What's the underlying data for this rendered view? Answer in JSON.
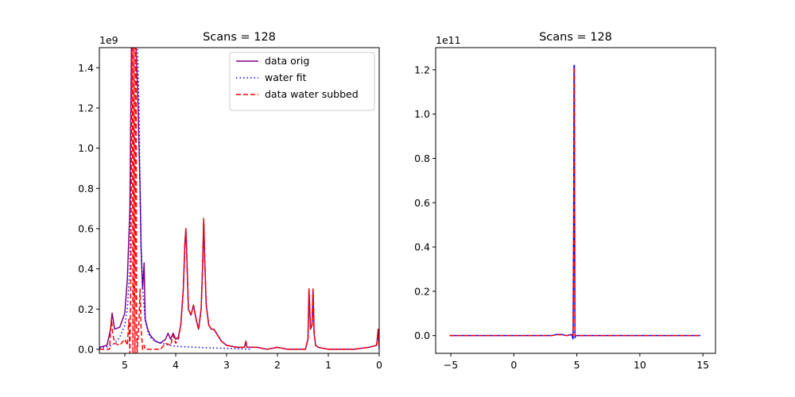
{
  "chart_data": [
    {
      "type": "line",
      "title": "Scans = 128",
      "xlabel": "",
      "ylabel": "",
      "y_offset_text": "1e9",
      "xlim": [
        5.5,
        0
      ],
      "ylim": [
        -0.02,
        1.5
      ],
      "x_ticks": [
        5,
        4,
        3,
        2,
        1,
        0
      ],
      "x_tick_labels": [
        "5",
        "4",
        "3",
        "2",
        "1",
        "0"
      ],
      "y_ticks": [
        0.0,
        0.2,
        0.4,
        0.6,
        0.8,
        1.0,
        1.2,
        1.4
      ],
      "y_tick_labels": [
        "0.0",
        "0.2",
        "0.4",
        "0.6",
        "0.8",
        "1.0",
        "1.2",
        "1.4"
      ],
      "grid": false,
      "legend": "upper right",
      "series": [
        {
          "name": "data orig",
          "color": "#800080",
          "style": "solid",
          "x": [
            5.5,
            5.35,
            5.28,
            5.25,
            5.2,
            5.1,
            5.0,
            4.95,
            4.9,
            4.87,
            4.85,
            4.83,
            4.8,
            4.78,
            4.75,
            4.72,
            4.7,
            4.68,
            4.65,
            4.62,
            4.6,
            4.55,
            4.5,
            4.4,
            4.3,
            4.2,
            4.15,
            4.1,
            4.05,
            4.0,
            3.95,
            3.9,
            3.85,
            3.82,
            3.8,
            3.78,
            3.75,
            3.7,
            3.65,
            3.6,
            3.55,
            3.5,
            3.47,
            3.45,
            3.43,
            3.4,
            3.35,
            3.3,
            3.25,
            3.2,
            3.1,
            3.0,
            2.8,
            2.65,
            2.62,
            2.6,
            2.4,
            2.2,
            2.0,
            1.8,
            1.6,
            1.45,
            1.4,
            1.38,
            1.35,
            1.32,
            1.3,
            1.28,
            1.25,
            1.2,
            1.0,
            0.8,
            0.5,
            0.2,
            0.05,
            0.02,
            0.0
          ],
          "y": [
            0.01,
            0.02,
            0.1,
            0.18,
            0.1,
            0.11,
            0.18,
            0.35,
            0.7,
            1.5,
            1.5,
            1.5,
            1.5,
            1.5,
            1.3,
            1.0,
            0.8,
            0.5,
            0.3,
            0.43,
            0.15,
            0.1,
            0.07,
            0.04,
            0.03,
            0.05,
            0.08,
            0.05,
            0.08,
            0.05,
            0.06,
            0.12,
            0.3,
            0.52,
            0.6,
            0.45,
            0.2,
            0.17,
            0.22,
            0.15,
            0.1,
            0.2,
            0.42,
            0.65,
            0.45,
            0.22,
            0.12,
            0.1,
            0.1,
            0.08,
            0.04,
            0.02,
            0.01,
            0.01,
            0.04,
            0.01,
            0.01,
            0.0,
            0.01,
            0.0,
            0.0,
            0.0,
            0.05,
            0.3,
            0.1,
            0.12,
            0.3,
            0.08,
            0.02,
            0.01,
            0.0,
            0.0,
            0.0,
            0.01,
            0.02,
            0.1,
            0.0
          ]
        },
        {
          "name": "water fit",
          "color": "#0000ff",
          "style": "dotted",
          "x": [
            5.5,
            5.3,
            5.2,
            5.1,
            5.0,
            4.95,
            4.9,
            4.87,
            4.85,
            4.8,
            4.75,
            4.72,
            4.7,
            4.68,
            4.65,
            4.6,
            4.55,
            4.5,
            4.4,
            4.2,
            4.0,
            3.6,
            3.2,
            2.8,
            2.5
          ],
          "y": [
            0.005,
            0.015,
            0.03,
            0.06,
            0.12,
            0.2,
            0.4,
            1.0,
            1.5,
            1.5,
            1.5,
            1.2,
            0.8,
            0.5,
            0.3,
            0.15,
            0.09,
            0.06,
            0.04,
            0.025,
            0.015,
            0.01,
            0.006,
            0.003,
            0.0
          ]
        },
        {
          "name": "data water subbed",
          "color": "#ff0000",
          "style": "dashed",
          "x": [
            5.5,
            5.3,
            5.28,
            5.26,
            5.24,
            5.2,
            5.1,
            5.0,
            4.95,
            4.92,
            4.9,
            4.88,
            4.86,
            4.85,
            4.84,
            4.83,
            4.82,
            4.81,
            4.8,
            4.79,
            4.78,
            4.77,
            4.76,
            4.74,
            4.72,
            4.7,
            4.68,
            4.65,
            4.62,
            4.6,
            4.55,
            4.5,
            4.4,
            4.3,
            4.2,
            4.1,
            4.05,
            4.0,
            3.95,
            3.9,
            3.85,
            3.82,
            3.8,
            3.78,
            3.75,
            3.7,
            3.65,
            3.6,
            3.55,
            3.5,
            3.47,
            3.45,
            3.43,
            3.4,
            3.35,
            3.3,
            3.25,
            3.2,
            3.1,
            3.0,
            2.8,
            2.65,
            2.62,
            2.6,
            2.4,
            2.2,
            2.0,
            1.8,
            1.6,
            1.45,
            1.4,
            1.38,
            1.35,
            1.32,
            1.3,
            1.28,
            1.25,
            1.2,
            1.0,
            0.8,
            0.5,
            0.2,
            0.05,
            0.02,
            0.0
          ],
          "y": [
            0.0,
            0.0,
            0.1,
            0.15,
            0.08,
            0.03,
            0.02,
            0.05,
            0.02,
            0.15,
            -0.02,
            0.4,
            1.5,
            1.5,
            -0.02,
            0.5,
            1.5,
            0.3,
            -0.02,
            1.5,
            1.5,
            0.2,
            -0.02,
            0.05,
            0.15,
            0.3,
            0.1,
            0.0,
            0.02,
            0.0,
            0.0,
            0.0,
            0.0,
            0.0,
            0.03,
            0.02,
            0.07,
            0.03,
            0.05,
            0.12,
            0.3,
            0.52,
            0.6,
            0.45,
            0.2,
            0.17,
            0.22,
            0.15,
            0.1,
            0.2,
            0.42,
            0.65,
            0.45,
            0.22,
            0.12,
            0.1,
            0.1,
            0.08,
            0.04,
            0.02,
            0.01,
            0.01,
            0.04,
            0.01,
            0.01,
            0.0,
            0.01,
            0.0,
            0.0,
            0.0,
            0.05,
            0.3,
            0.1,
            0.12,
            0.3,
            0.08,
            0.02,
            0.01,
            0.0,
            0.0,
            0.0,
            0.01,
            0.02,
            0.1,
            0.0
          ]
        }
      ]
    },
    {
      "type": "line",
      "title": "Scans = 128",
      "xlabel": "",
      "ylabel": "",
      "y_offset_text": "1e11",
      "xlim": [
        -6.2,
        16.0
      ],
      "ylim": [
        -0.08,
        1.3
      ],
      "x_ticks": [
        -5,
        0,
        5,
        10,
        15
      ],
      "x_tick_labels": [
        "−5",
        "0",
        "5",
        "10",
        "15"
      ],
      "y_ticks": [
        0.0,
        0.2,
        0.4,
        0.6,
        0.8,
        1.0,
        1.2
      ],
      "y_tick_labels": [
        "0.0",
        "0.2",
        "0.4",
        "0.6",
        "0.8",
        "1.0",
        "1.2"
      ],
      "grid": false,
      "legend": "none",
      "series": [
        {
          "color": "#0000ff",
          "style": "solid",
          "x": [
            -5.1,
            3.0,
            3.4,
            3.8,
            4.2,
            4.6,
            4.7,
            4.75,
            4.78,
            4.8,
            4.82,
            4.85,
            4.9,
            5.0,
            6.0,
            14.8
          ],
          "y": [
            0.0,
            0.0,
            0.005,
            0.005,
            0.0,
            0.005,
            -0.015,
            0.5,
            1.22,
            1.22,
            0.6,
            -0.01,
            0.0,
            0.0,
            0.0,
            0.0
          ]
        },
        {
          "color": "#ff0000",
          "style": "dashed",
          "x": [
            -5.1,
            3.0,
            3.4,
            3.8,
            4.2,
            4.6,
            4.7,
            4.75,
            4.78,
            4.8,
            4.82,
            4.85,
            4.9,
            5.0,
            6.0,
            14.8
          ],
          "y": [
            0.0,
            0.0,
            0.004,
            0.004,
            0.0,
            0.003,
            0.0,
            0.5,
            1.21,
            1.21,
            0.6,
            0.0,
            0.0,
            0.0,
            0.0,
            0.0
          ]
        }
      ]
    }
  ]
}
